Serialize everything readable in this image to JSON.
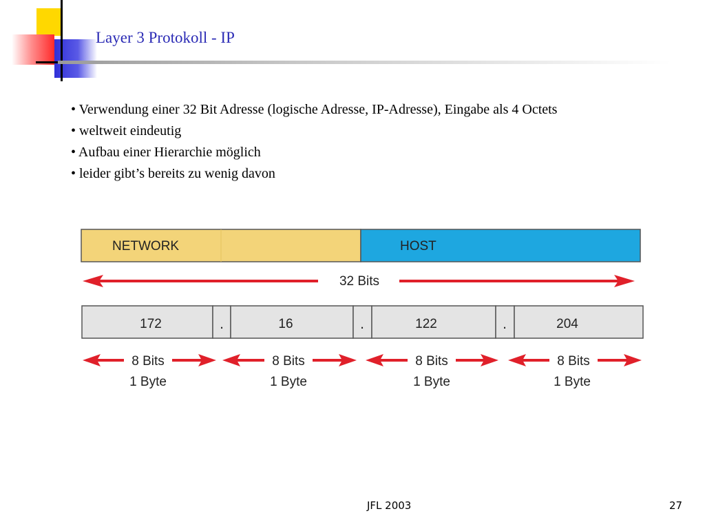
{
  "slide": {
    "title": "Layer 3 Protokoll - IP",
    "bullets": [
      "• Verwendung einer 32 Bit Adresse (logische Adresse, IP-Adresse), Eingabe als 4 Octets",
      "• weltweit eindeutig",
      "• Aufbau einer Hierarchie möglich",
      "• leider gibt’s bereits zu wenig davon"
    ],
    "footer_center": "JFL 2003",
    "page_number": "27"
  },
  "diagram": {
    "network_label": "NETWORK",
    "host_label": "HOST",
    "total_bits_label": "32 Bits",
    "octets": [
      "172",
      "16",
      "122",
      "204"
    ],
    "separator": ".",
    "octet_bits_label": "8 Bits",
    "octet_byte_label": "1 Byte",
    "colors": {
      "network": "#f3d479",
      "host": "#1ea7e0",
      "octet_box": "#e4e4e4",
      "arrow": "#e0202a",
      "title": "#2b2bb5"
    }
  }
}
